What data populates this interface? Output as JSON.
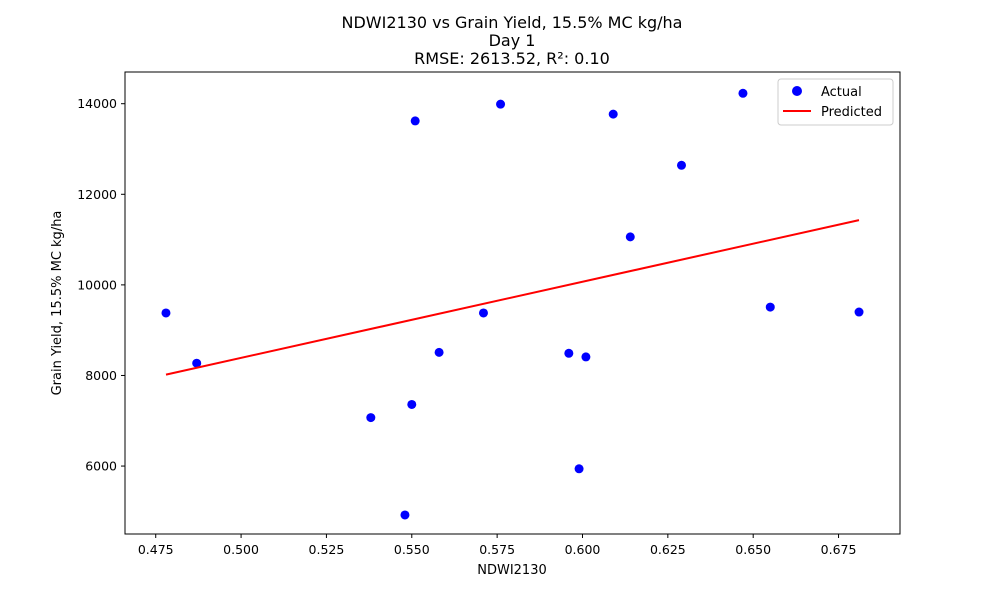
{
  "chart_data": {
    "type": "scatter",
    "title_lines": [
      "NDWI2130 vs Grain Yield, 15.5% MC kg/ha",
      "Day 1",
      "RMSE: 2613.52, R²: 0.10"
    ],
    "xlabel": "NDWI2130",
    "ylabel": "Grain Yield, 15.5% MC kg/ha",
    "xlim": [
      0.466,
      0.693
    ],
    "ylim": [
      4500,
      14700
    ],
    "xticks": [
      0.475,
      0.5,
      0.525,
      0.55,
      0.575,
      0.6,
      0.625,
      0.65,
      0.675
    ],
    "xtick_labels": [
      "0.475",
      "0.500",
      "0.525",
      "0.550",
      "0.575",
      "0.600",
      "0.625",
      "0.650",
      "0.675"
    ],
    "yticks": [
      6000,
      8000,
      10000,
      12000,
      14000
    ],
    "ytick_labels": [
      "6000",
      "8000",
      "10000",
      "12000",
      "14000"
    ],
    "grid": false,
    "legend_position": "upper right",
    "series": [
      {
        "name": "Actual",
        "kind": "scatter",
        "color": "#0000ff",
        "points": [
          {
            "x": 0.478,
            "y": 9380
          },
          {
            "x": 0.487,
            "y": 8270
          },
          {
            "x": 0.538,
            "y": 7070
          },
          {
            "x": 0.548,
            "y": 4920
          },
          {
            "x": 0.55,
            "y": 7360
          },
          {
            "x": 0.551,
            "y": 13620
          },
          {
            "x": 0.558,
            "y": 8510
          },
          {
            "x": 0.571,
            "y": 9380
          },
          {
            "x": 0.576,
            "y": 13990
          },
          {
            "x": 0.596,
            "y": 8490
          },
          {
            "x": 0.599,
            "y": 5940
          },
          {
            "x": 0.601,
            "y": 8410
          },
          {
            "x": 0.609,
            "y": 13770
          },
          {
            "x": 0.614,
            "y": 11060
          },
          {
            "x": 0.629,
            "y": 12640
          },
          {
            "x": 0.647,
            "y": 14230
          },
          {
            "x": 0.655,
            "y": 9510
          },
          {
            "x": 0.681,
            "y": 9400
          }
        ]
      },
      {
        "name": "Predicted",
        "kind": "line",
        "color": "#ff0000",
        "points": [
          {
            "x": 0.478,
            "y": 8020
          },
          {
            "x": 0.681,
            "y": 11430
          }
        ]
      }
    ]
  }
}
